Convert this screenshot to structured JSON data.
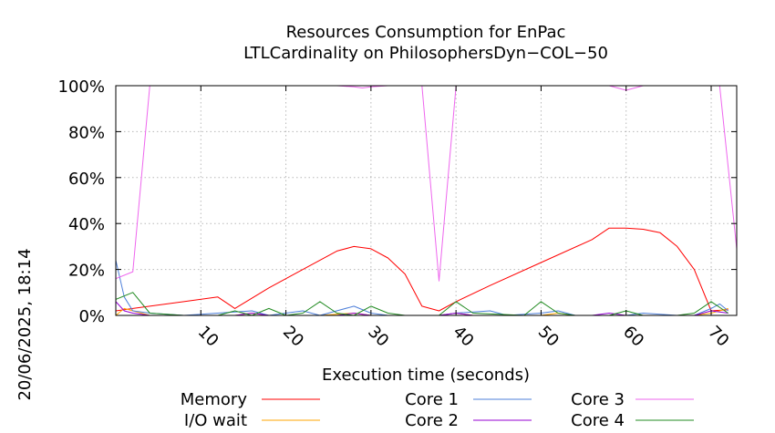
{
  "chart_data": {
    "type": "line",
    "title": "Resources Consumption for EnPac",
    "subtitle": "LTLCardinality on PhilosophersDyn−COL−50",
    "xlabel": "Execution time (seconds)",
    "ylabel": "",
    "side_label": "20/06/2025, 18:14",
    "xlim": [
      0,
      73
    ],
    "ylim": [
      0,
      100
    ],
    "grid": true,
    "legend_position": "bottom",
    "x_ticks": [
      {
        "value": 10,
        "label": "10"
      },
      {
        "value": 20,
        "label": "20"
      },
      {
        "value": 30,
        "label": "30"
      },
      {
        "value": 40,
        "label": "40"
      },
      {
        "value": 50,
        "label": "50"
      },
      {
        "value": 60,
        "label": "60"
      },
      {
        "value": 70,
        "label": "70"
      }
    ],
    "y_ticks": [
      {
        "value": 0,
        "label": "0%"
      },
      {
        "value": 20,
        "label": "20%"
      },
      {
        "value": 40,
        "label": "40%"
      },
      {
        "value": 60,
        "label": "60%"
      },
      {
        "value": 80,
        "label": "80%"
      },
      {
        "value": 100,
        "label": "100%"
      }
    ],
    "series": [
      {
        "name": "Memory",
        "color": "#ff0000",
        "points": [
          [
            0,
            2
          ],
          [
            1,
            2.5
          ],
          [
            2,
            3
          ],
          [
            4,
            4
          ],
          [
            8,
            6
          ],
          [
            12,
            8
          ],
          [
            14,
            3
          ],
          [
            18,
            12
          ],
          [
            22,
            20
          ],
          [
            26,
            28
          ],
          [
            28,
            30
          ],
          [
            30,
            29
          ],
          [
            32,
            25
          ],
          [
            34,
            18
          ],
          [
            36,
            4
          ],
          [
            38,
            2
          ],
          [
            40,
            6
          ],
          [
            44,
            13
          ],
          [
            50,
            23
          ],
          [
            56,
            33
          ],
          [
            58,
            38
          ],
          [
            60,
            38
          ],
          [
            62,
            37.5
          ],
          [
            64,
            36
          ],
          [
            66,
            30
          ],
          [
            68,
            20
          ],
          [
            70,
            2
          ],
          [
            72,
            2.5
          ]
        ]
      },
      {
        "name": "I/O wait",
        "color": "#ffa500",
        "points": [
          [
            0,
            0
          ],
          [
            1,
            3
          ],
          [
            2,
            2
          ],
          [
            4,
            0
          ],
          [
            10,
            0
          ],
          [
            14,
            0
          ],
          [
            16,
            1
          ],
          [
            18,
            0
          ],
          [
            24,
            0
          ],
          [
            28,
            1
          ],
          [
            30,
            0
          ],
          [
            38,
            0
          ],
          [
            40,
            1
          ],
          [
            42,
            0
          ],
          [
            50,
            0
          ],
          [
            52,
            1
          ],
          [
            54,
            0
          ],
          [
            60,
            0
          ],
          [
            64,
            0
          ],
          [
            68,
            0
          ],
          [
            70,
            1
          ],
          [
            72,
            3
          ]
        ]
      },
      {
        "name": "Core 1",
        "color": "#4d7fd9",
        "points": [
          [
            0,
            24
          ],
          [
            1,
            8
          ],
          [
            2,
            2
          ],
          [
            4,
            1
          ],
          [
            8,
            0
          ],
          [
            12,
            1
          ],
          [
            16,
            2
          ],
          [
            18,
            0
          ],
          [
            22,
            2
          ],
          [
            24,
            0
          ],
          [
            28,
            4
          ],
          [
            30,
            1
          ],
          [
            32,
            0
          ],
          [
            38,
            0
          ],
          [
            40,
            1
          ],
          [
            44,
            2
          ],
          [
            46,
            0
          ],
          [
            50,
            1
          ],
          [
            52,
            2
          ],
          [
            54,
            0
          ],
          [
            60,
            0
          ],
          [
            62,
            1
          ],
          [
            66,
            0
          ],
          [
            68,
            0
          ],
          [
            70,
            3
          ],
          [
            71,
            5
          ],
          [
            72,
            2
          ]
        ]
      },
      {
        "name": "Core 2",
        "color": "#9400d3",
        "points": [
          [
            0,
            6
          ],
          [
            1,
            2
          ],
          [
            2,
            1
          ],
          [
            4,
            0
          ],
          [
            10,
            0
          ],
          [
            14,
            0
          ],
          [
            16,
            1
          ],
          [
            18,
            0
          ],
          [
            26,
            0
          ],
          [
            28,
            1
          ],
          [
            30,
            0
          ],
          [
            38,
            0
          ],
          [
            40,
            1
          ],
          [
            42,
            0
          ],
          [
            56,
            0
          ],
          [
            58,
            1
          ],
          [
            60,
            0
          ],
          [
            66,
            0
          ],
          [
            68,
            0
          ],
          [
            70,
            2
          ],
          [
            72,
            1
          ]
        ]
      },
      {
        "name": "Core 3",
        "color": "#ee66ee",
        "points": [
          [
            0,
            16
          ],
          [
            2,
            19
          ],
          [
            4,
            100
          ],
          [
            10,
            100
          ],
          [
            20,
            100
          ],
          [
            26,
            100
          ],
          [
            28,
            99.5
          ],
          [
            29,
            99
          ],
          [
            30,
            99.5
          ],
          [
            32,
            100
          ],
          [
            36,
            100
          ],
          [
            38,
            15
          ],
          [
            40,
            100
          ],
          [
            50,
            100
          ],
          [
            58,
            100
          ],
          [
            60,
            98
          ],
          [
            62,
            100
          ],
          [
            70,
            100
          ],
          [
            71,
            100
          ],
          [
            73,
            29
          ]
        ]
      },
      {
        "name": "Core 4",
        "color": "#228b22",
        "points": [
          [
            0,
            7
          ],
          [
            2,
            10
          ],
          [
            4,
            1
          ],
          [
            8,
            0
          ],
          [
            12,
            0
          ],
          [
            14,
            2
          ],
          [
            16,
            0
          ],
          [
            18,
            3
          ],
          [
            20,
            0
          ],
          [
            22,
            1
          ],
          [
            24,
            6
          ],
          [
            26,
            1
          ],
          [
            28,
            0
          ],
          [
            30,
            4
          ],
          [
            32,
            1
          ],
          [
            34,
            0
          ],
          [
            38,
            0
          ],
          [
            40,
            6
          ],
          [
            42,
            1
          ],
          [
            48,
            0
          ],
          [
            50,
            6
          ],
          [
            52,
            1
          ],
          [
            54,
            0
          ],
          [
            58,
            0
          ],
          [
            60,
            2
          ],
          [
            62,
            0
          ],
          [
            66,
            0
          ],
          [
            68,
            1
          ],
          [
            70,
            6
          ],
          [
            72,
            1
          ]
        ]
      }
    ]
  }
}
